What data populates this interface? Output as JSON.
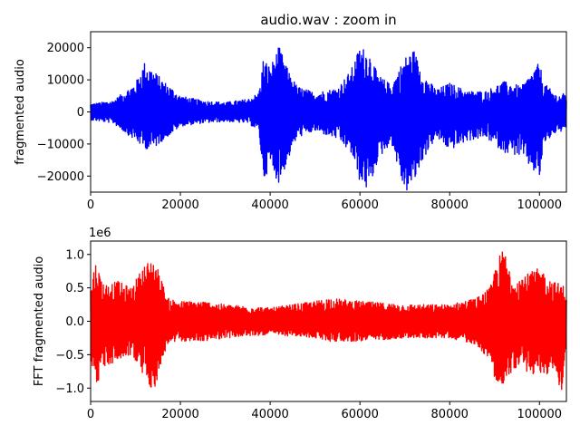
{
  "chart_data": [
    {
      "type": "line",
      "title": "audio.wav : zoom in",
      "xlabel": "",
      "ylabel": "fragmented audio",
      "color": "#0000ff",
      "xlim": [
        0,
        106000
      ],
      "ylim": [
        -25000,
        25000
      ],
      "xticks": [
        0,
        20000,
        40000,
        60000,
        80000,
        100000
      ],
      "xtick_labels": [
        "0",
        "20000",
        "40000",
        "60000",
        "80000",
        "100000"
      ],
      "yticks": [
        -20000,
        -10000,
        0,
        10000,
        20000
      ],
      "ytick_labels": [
        "−20000",
        "−10000",
        "0",
        "10000",
        "20000"
      ],
      "grid": false,
      "series": [
        {
          "x": [
            0,
            5000,
            10000,
            12000,
            14000,
            16000,
            20000,
            25000,
            30000,
            35000,
            37500,
            38500,
            40000,
            42000,
            44000,
            46000,
            50000,
            55000,
            58000,
            60000,
            62000,
            64000,
            67000,
            70000,
            72000,
            74000,
            77000,
            80000,
            84000,
            88000,
            92000,
            96000,
            100000,
            101000,
            104000,
            106000
          ],
          "upper": [
            2500,
            3500,
            9000,
            15500,
            13000,
            10000,
            5000,
            3500,
            3000,
            4000,
            6000,
            17000,
            14000,
            20500,
            13000,
            8000,
            6000,
            7500,
            13000,
            20500,
            19000,
            11500,
            8500,
            17000,
            19500,
            12000,
            7000,
            9000,
            6500,
            6500,
            9500,
            8000,
            15500,
            9000,
            5000,
            6000
          ],
          "lower": [
            -2500,
            -3500,
            -9000,
            -11500,
            -11500,
            -9000,
            -4500,
            -3500,
            -3000,
            -3500,
            -6000,
            -21500,
            -17000,
            -22500,
            -15000,
            -8000,
            -6000,
            -8500,
            -13000,
            -22000,
            -25000,
            -15000,
            -9500,
            -25500,
            -22500,
            -15000,
            -8000,
            -12000,
            -9000,
            -8000,
            -12500,
            -14000,
            -21000,
            -10000,
            -6000,
            -6500
          ]
        }
      ]
    },
    {
      "type": "line",
      "title": "",
      "xlabel": "",
      "ylabel": "FFT fragmented audio",
      "offset_text": "1e6",
      "color": "#ff0000",
      "xlim": [
        0,
        106000
      ],
      "ylim": [
        -1.2,
        1.2
      ],
      "xticks": [
        0,
        20000,
        40000,
        60000,
        80000,
        100000
      ],
      "xtick_labels": [
        "0",
        "20000",
        "40000",
        "60000",
        "80000",
        "100000"
      ],
      "yticks": [
        -1.0,
        -0.5,
        0.0,
        0.5,
        1.0
      ],
      "ytick_labels": [
        "−1.0",
        "−0.5",
        "0.0",
        "0.5",
        "1.0"
      ],
      "grid": false,
      "series": [
        {
          "x": [
            0,
            1000,
            3000,
            6000,
            9000,
            12000,
            14000,
            15500,
            17000,
            20000,
            25000,
            30000,
            40000,
            50000,
            53000,
            60000,
            70000,
            80000,
            86000,
            89000,
            90500,
            92000,
            94000,
            97000,
            100000,
            103000,
            105000,
            106000
          ],
          "upper": [
            0.5,
            0.9,
            0.55,
            0.6,
            0.5,
            0.85,
            0.95,
            0.7,
            0.35,
            0.3,
            0.3,
            0.25,
            0.2,
            0.3,
            0.35,
            0.3,
            0.25,
            0.25,
            0.35,
            0.5,
            0.9,
            1.1,
            0.65,
            0.7,
            0.8,
            0.6,
            0.55,
            0.5
          ],
          "lower": [
            -0.5,
            -1.0,
            -0.7,
            -0.6,
            -0.5,
            -0.85,
            -1.05,
            -0.75,
            -0.35,
            -0.3,
            -0.3,
            -0.25,
            -0.2,
            -0.25,
            -0.3,
            -0.3,
            -0.25,
            -0.25,
            -0.35,
            -0.6,
            -0.95,
            -1.1,
            -0.7,
            -0.75,
            -0.85,
            -0.75,
            -1.05,
            -0.5
          ]
        }
      ]
    }
  ]
}
